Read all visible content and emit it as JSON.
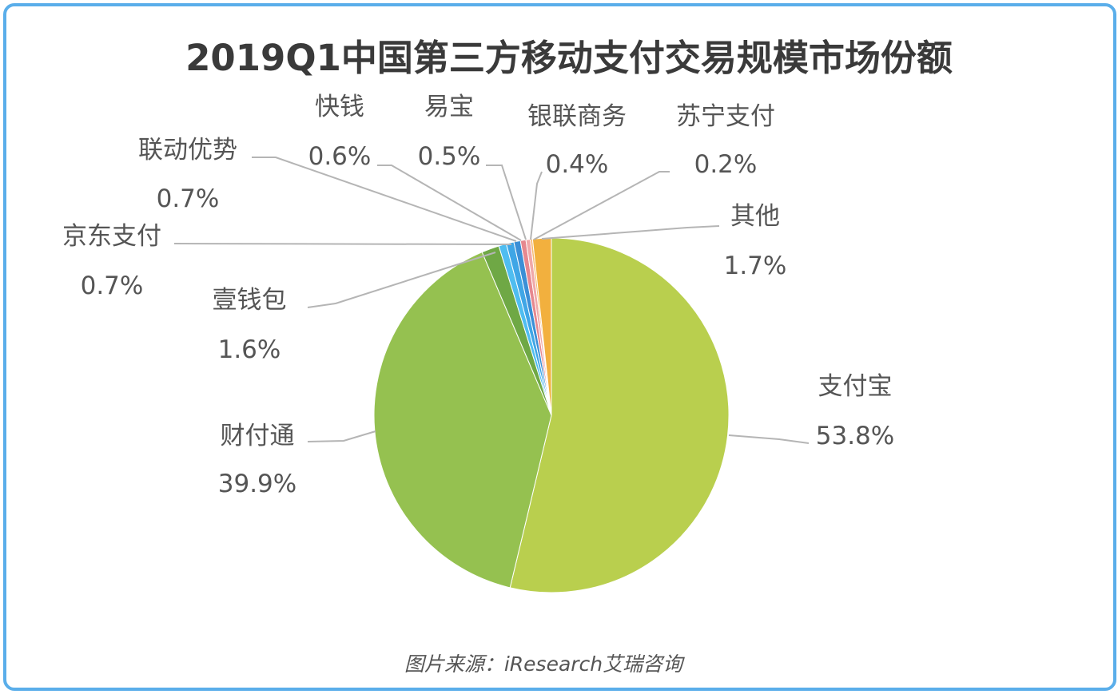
{
  "chart_data": {
    "type": "pie",
    "title": "2019Q1中国第三方移动支付交易规模市场份额",
    "source": "图片来源：iResearch艾瑞咨询",
    "slices": [
      {
        "label": "支付宝",
        "value": 53.8,
        "value_label": "53.8%",
        "color": "#b9cf4e"
      },
      {
        "label": "财付通",
        "value": 39.9,
        "value_label": "39.9%",
        "color": "#95c150"
      },
      {
        "label": "壹钱包",
        "value": 1.6,
        "value_label": "1.6%",
        "color": "#6fa845"
      },
      {
        "label": "京东支付",
        "value": 0.7,
        "value_label": "0.7%",
        "color": "#4fbdf0"
      },
      {
        "label": "联动优势",
        "value": 0.7,
        "value_label": "0.7%",
        "color": "#3fa6e6"
      },
      {
        "label": "快钱",
        "value": 0.6,
        "value_label": "0.6%",
        "color": "#3b8fd6"
      },
      {
        "label": "易宝",
        "value": 0.5,
        "value_label": "0.5%",
        "color": "#e6888f"
      },
      {
        "label": "银联商务",
        "value": 0.4,
        "value_label": "0.4%",
        "color": "#f0a8a8"
      },
      {
        "label": "苏宁支付",
        "value": 0.2,
        "value_label": "0.2%",
        "color": "#f5b870"
      },
      {
        "label": "其他",
        "value": 1.7,
        "value_label": "1.7%",
        "color": "#f2b03e"
      }
    ],
    "start_angle": "top",
    "direction": "clockwise"
  },
  "border_color": "#5aaeea"
}
